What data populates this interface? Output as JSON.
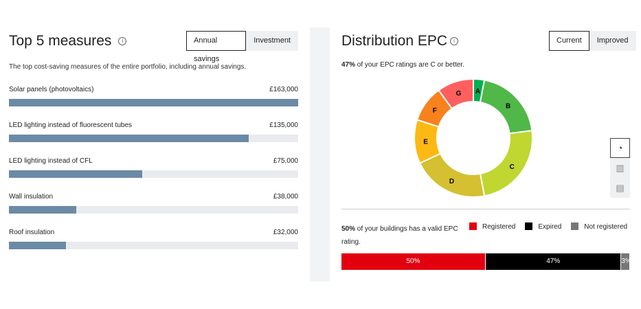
{
  "top5": {
    "title": "Top 5 measures",
    "info_icon": "info-icon",
    "tabs": [
      {
        "label": "Annual savings",
        "active": true
      },
      {
        "label": "Investment",
        "active": false
      }
    ],
    "description": "The top cost-saving measures of the entire portfolio, including annual savings.",
    "bar_color": "#6b8aa5",
    "measures": [
      {
        "label": "Solar panels (photovoltaics)",
        "value": "£163,000",
        "amount": 163000
      },
      {
        "label": "LED lighting instead of fluorescent tubes",
        "value": "£135,000",
        "amount": 135000
      },
      {
        "label": "LED lighting instead of CFL",
        "value": "£75,000",
        "amount": 75000
      },
      {
        "label": "Wall insulation",
        "value": "£38,000",
        "amount": 38000
      },
      {
        "label": "Roof insulation",
        "value": "£32,000",
        "amount": 32000
      }
    ]
  },
  "epc": {
    "title": "Distribution EPC",
    "info_icon": "info-icon",
    "tabs": [
      {
        "label": "Current",
        "active": true
      },
      {
        "label": "Improved",
        "active": false
      }
    ],
    "summary_bold": "47%",
    "summary_rest": " of your EPC ratings are C or better.",
    "views": [
      "pie-chart-icon",
      "bar-chart-icon",
      "table-icon"
    ],
    "valid_bold": "50%",
    "valid_rest": " of your buildings has a valid EPC rating.",
    "legend": [
      {
        "label": "Registered",
        "color": "#e2000f"
      },
      {
        "label": "Expired",
        "color": "#000000"
      },
      {
        "label": "Not registered",
        "color": "#777777"
      }
    ],
    "status": [
      {
        "label": "50%",
        "value": 50,
        "color": "#e2000f"
      },
      {
        "label": "47%",
        "value": 47,
        "color": "#000000"
      },
      {
        "label": "3%",
        "value": 3,
        "color": "#777777"
      }
    ]
  },
  "chart_data": {
    "type": "pie",
    "donut": true,
    "categories": [
      "A",
      "B",
      "C",
      "D",
      "E",
      "F",
      "G"
    ],
    "values": [
      3,
      20,
      24,
      21,
      12,
      10,
      10
    ],
    "colors": [
      "#00b050",
      "#50b848",
      "#bfd730",
      "#d4c030",
      "#fdb913",
      "#f7821e",
      "#ff5f5f"
    ]
  }
}
